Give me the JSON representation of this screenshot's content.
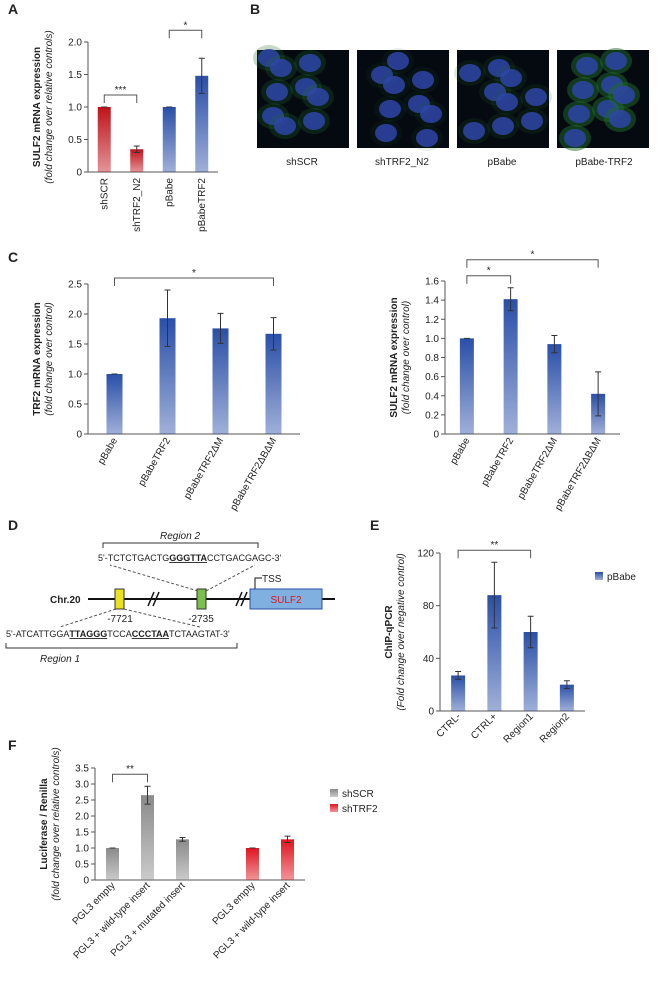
{
  "panels": [
    "A",
    "B",
    "C",
    "D",
    "E",
    "F"
  ],
  "images": [
    "shSCR",
    "shTRF2_N2",
    "pBabe",
    "pBabe-TRF2"
  ],
  "diagram": {
    "region2": "Region 2",
    "region2_seq": [
      "5'-TCTCTGACTG",
      "GGGTTA",
      "CCTGACGAGC-3'"
    ],
    "chromosome": "Chr.20",
    "site1": "-7721",
    "site2": "-2735",
    "tss": "TSS",
    "gene": "SULF2",
    "region1_seq": [
      "5'-ATCATTGGA",
      "TTAGGG",
      "TCCA",
      "CCCTAA",
      "TCTAAGTAT-3'"
    ],
    "region1": "Region 1"
  },
  "chart_data": [
    {
      "type": "bar",
      "y_label": "SULF2 mRNA expression",
      "y_sublabel": "(fold change over relative controls)",
      "categories": [
        "shSCR",
        "shTRF2_N2",
        "pBabe",
        "pBabeTRF2"
      ],
      "values": [
        1.0,
        0.35,
        1.0,
        1.48
      ],
      "errors": [
        0,
        0.05,
        0,
        0.27
      ],
      "colors": [
        "#c0121a",
        "#c0121a",
        "#2a4fa8",
        "#2a4fa8"
      ],
      "ylim": [
        0,
        2
      ],
      "yticks": [
        0,
        0.5,
        {
          "value": 1,
          "label": "1.0"
        },
        1.5,
        {
          "value": 2,
          "label": "2.0"
        }
      ],
      "annotations": [
        {
          "text": "***",
          "from": 0,
          "to": 1
        },
        {
          "text": "*",
          "from": 2,
          "to": 3
        }
      ]
    },
    {
      "type": "bar",
      "y_label": "TRF2 mRNA expression",
      "y_sublabel": "(fold change over control)",
      "categories": [
        "pBabe",
        "pBabeTRF2",
        "pBabeTRF2ΔM",
        "pBabeTRF2ΔBΔM"
      ],
      "values": [
        1.0,
        1.93,
        1.76,
        1.67
      ],
      "errors": [
        0,
        0.47,
        0.25,
        0.27
      ],
      "color": "#2a4fa8",
      "ylim": [
        0,
        2.5
      ],
      "yticks": [
        0,
        0.5,
        {
          "value": 1,
          "label": "1.0"
        },
        1.5,
        {
          "value": 2,
          "label": "2.0"
        },
        2.5
      ],
      "annotations": [
        {
          "text": "*",
          "from": 0,
          "to": 3
        }
      ]
    },
    {
      "type": "bar",
      "y_label": "SULF2 mRNA expression",
      "y_sublabel": "(fold change over control)",
      "categories": [
        "pBabe",
        "pBabeTRF2",
        "pBabeTRF2ΔM",
        "pBabeTRF2ΔBΔM"
      ],
      "values": [
        1.0,
        1.41,
        0.94,
        0.42
      ],
      "errors": [
        0,
        0.12,
        0.09,
        0.23
      ],
      "color": "#2a4fa8",
      "ylim": [
        0,
        1.6
      ],
      "yticks": [
        0,
        0.2,
        0.4,
        0.6,
        0.8,
        {
          "value": 1,
          "label": "1.0"
        },
        1.2,
        1.4,
        1.6
      ],
      "annotations": [
        {
          "text": "*",
          "from": 0,
          "to": 1
        },
        {
          "text": "*",
          "from": 0,
          "to": 3
        }
      ]
    },
    {
      "type": "bar",
      "y_label": "ChIP-qPCR",
      "y_sublabel": "(Fold change over negative control)",
      "categories": [
        "CTRL-",
        "CTRL+",
        "Region1",
        "Region2"
      ],
      "series": [
        {
          "name": "pBabe",
          "color": "#2a4fa8",
          "values": [
            27,
            88,
            60,
            20
          ],
          "errors": [
            3,
            25,
            12,
            3
          ]
        }
      ],
      "ylim": [
        0,
        120
      ],
      "yticks": [
        0,
        40,
        80,
        120
      ],
      "annotations": [
        {
          "text": "**",
          "from": 0,
          "to": 2
        }
      ]
    },
    {
      "type": "bar",
      "y_label": "Luciferase / Renilla",
      "y_sublabel": "(fold change over relative controls)",
      "categories": [
        "PGL3 empty",
        "PGL3 + wild-type insert",
        "PGL3 + mutated insert",
        null,
        "PGL3 empty",
        "PGL3 + wild-type insert"
      ],
      "series": [
        {
          "name": "shSCR",
          "color": "#8a8a8a",
          "values": [
            1.0,
            2.65,
            1.27,
            null,
            null,
            null
          ],
          "errors": [
            0,
            0.28,
            0.06,
            null,
            null,
            null
          ]
        },
        {
          "name": "shTRF2",
          "color": "#e0141e",
          "values": [
            null,
            null,
            null,
            null,
            1.0,
            1.27
          ],
          "errors": [
            null,
            null,
            null,
            null,
            0,
            0.1
          ]
        }
      ],
      "ylim": [
        0,
        3.5
      ],
      "yticks": [
        0,
        0.5,
        {
          "value": 1,
          "label": "1.0"
        },
        1.5,
        {
          "value": 2,
          "label": "2.0"
        },
        2.5,
        {
          "value": 3,
          "label": "3.0"
        },
        3.5
      ],
      "annotations": [
        {
          "text": "**",
          "from": 0,
          "to": 1
        }
      ]
    }
  ]
}
